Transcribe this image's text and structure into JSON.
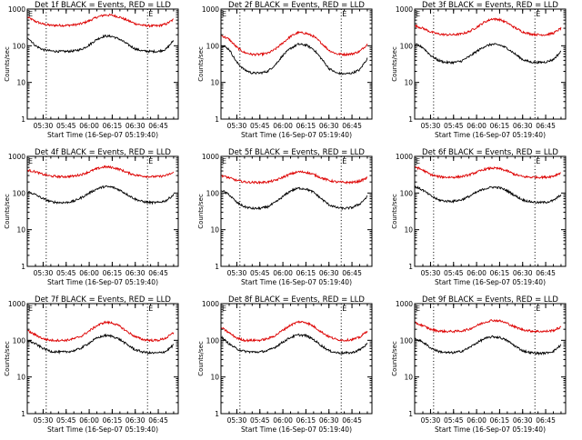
{
  "figure": {
    "xlabel": "Start Time (16-Sep-07 05:19:40)",
    "ylabel": "Counts/sec",
    "x_tick_labels": [
      "05:30",
      "05:45",
      "06:00",
      "06:15",
      "06:30",
      "06:45"
    ],
    "y_tick_labels": [
      "1",
      "10",
      "100",
      "1000"
    ],
    "marker_label": "E"
  },
  "chart_data": [
    {
      "type": "line",
      "title": "Det 1f BLACK = Events, RED = LLD",
      "xlabel": "Start Time (16-Sep-07 05:19:40)",
      "ylabel": "Counts/sec",
      "yscale": "log",
      "ylim": [
        1,
        1000
      ],
      "x": [
        "05:20",
        "05:25",
        "05:30",
        "05:35",
        "05:40",
        "05:45",
        "05:50",
        "05:55",
        "06:00",
        "06:05",
        "06:10",
        "06:15",
        "06:20",
        "06:25",
        "06:30",
        "06:35",
        "06:40",
        "06:45",
        "06:50",
        "06:55"
      ],
      "dotted_lines": [
        "05:32",
        "06:38"
      ],
      "series": [
        {
          "name": "LLD",
          "color": "#dd0000",
          "values": [
            600,
            460,
            390,
            360,
            360,
            360,
            370,
            400,
            480,
            600,
            690,
            680,
            600,
            490,
            400,
            360,
            350,
            350,
            390,
            520
          ]
        },
        {
          "name": "Events",
          "color": "#000000",
          "values": [
            170,
            100,
            78,
            72,
            70,
            70,
            72,
            80,
            105,
            150,
            185,
            180,
            150,
            110,
            82,
            72,
            70,
            70,
            80,
            140
          ]
        }
      ]
    },
    {
      "type": "line",
      "title": "Det 2f BLACK = Events, RED = LLD",
      "xlabel": "Start Time (16-Sep-07 05:19:40)",
      "ylabel": "Counts/sec",
      "yscale": "log",
      "ylim": [
        1,
        1000
      ],
      "x": [
        "05:20",
        "05:25",
        "05:30",
        "05:35",
        "05:40",
        "05:45",
        "05:50",
        "05:55",
        "06:00",
        "06:05",
        "06:10",
        "06:15",
        "06:20",
        "06:25",
        "06:30",
        "06:35",
        "06:40",
        "06:45",
        "06:50",
        "06:55"
      ],
      "dotted_lines": [
        "05:32",
        "06:38"
      ],
      "series": [
        {
          "name": "LLD",
          "color": "#dd0000",
          "values": [
            190,
            150,
            90,
            65,
            58,
            58,
            62,
            80,
            120,
            180,
            230,
            220,
            180,
            120,
            75,
            60,
            58,
            60,
            70,
            110
          ]
        },
        {
          "name": "Events",
          "color": "#000000",
          "values": [
            105,
            80,
            35,
            22,
            18,
            18,
            20,
            30,
            55,
            85,
            110,
            105,
            80,
            45,
            24,
            18,
            17,
            18,
            22,
            45
          ]
        }
      ]
    },
    {
      "type": "line",
      "title": "Det 3f BLACK = Events, RED = LLD",
      "xlabel": "Start Time (16-Sep-07 05:19:40)",
      "ylabel": "Counts/sec",
      "yscale": "log",
      "ylim": [
        1,
        1000
      ],
      "x": [
        "05:20",
        "05:25",
        "05:30",
        "05:35",
        "05:40",
        "05:45",
        "05:50",
        "05:55",
        "06:00",
        "06:05",
        "06:10",
        "06:15",
        "06:20",
        "06:25",
        "06:30",
        "06:35",
        "06:40",
        "06:45",
        "06:50",
        "06:55"
      ],
      "dotted_lines": [
        "05:32",
        "06:38"
      ],
      "series": [
        {
          "name": "LLD",
          "color": "#dd0000",
          "values": [
            350,
            300,
            240,
            210,
            200,
            200,
            210,
            240,
            320,
            440,
            540,
            520,
            420,
            310,
            240,
            210,
            200,
            200,
            220,
            300
          ]
        },
        {
          "name": "Events",
          "color": "#000000",
          "values": [
            110,
            90,
            55,
            40,
            35,
            35,
            38,
            50,
            70,
            95,
            110,
            105,
            85,
            60,
            42,
            36,
            35,
            36,
            42,
            70
          ]
        }
      ]
    },
    {
      "type": "line",
      "title": "Det 4f BLACK = Events, RED = LLD",
      "xlabel": "Start Time (16-Sep-07 05:19:40)",
      "ylabel": "Counts/sec",
      "yscale": "log",
      "ylim": [
        1,
        1000
      ],
      "x": [
        "05:20",
        "05:25",
        "05:30",
        "05:35",
        "05:40",
        "05:45",
        "05:50",
        "05:55",
        "06:00",
        "06:05",
        "06:10",
        "06:15",
        "06:20",
        "06:25",
        "06:30",
        "06:35",
        "06:40",
        "06:45",
        "06:50",
        "06:55"
      ],
      "dotted_lines": [
        "05:32",
        "06:38"
      ],
      "series": [
        {
          "name": "LLD",
          "color": "#dd0000",
          "values": [
            420,
            380,
            320,
            290,
            280,
            280,
            290,
            320,
            380,
            460,
            520,
            500,
            440,
            360,
            310,
            290,
            280,
            280,
            300,
            360
          ]
        },
        {
          "name": "Events",
          "color": "#000000",
          "values": [
            110,
            90,
            70,
            58,
            55,
            55,
            60,
            75,
            100,
            130,
            150,
            145,
            120,
            90,
            68,
            58,
            55,
            55,
            62,
            90
          ]
        }
      ]
    },
    {
      "type": "line",
      "title": "Det 5f BLACK = Events, RED = LLD",
      "xlabel": "Start Time (16-Sep-07 05:19:40)",
      "ylabel": "Counts/sec",
      "yscale": "log",
      "ylim": [
        1,
        1000
      ],
      "x": [
        "05:20",
        "05:25",
        "05:30",
        "05:35",
        "05:40",
        "05:45",
        "05:50",
        "05:55",
        "06:00",
        "06:05",
        "06:10",
        "06:15",
        "06:20",
        "06:25",
        "06:30",
        "06:35",
        "06:40",
        "06:45",
        "06:50",
        "06:55"
      ],
      "dotted_lines": [
        "05:32",
        "06:38"
      ],
      "series": [
        {
          "name": "LLD",
          "color": "#dd0000",
          "values": [
            300,
            260,
            220,
            200,
            195,
            195,
            200,
            220,
            270,
            330,
            380,
            370,
            320,
            260,
            220,
            200,
            195,
            195,
            210,
            260
          ]
        },
        {
          "name": "Events",
          "color": "#000000",
          "values": [
            120,
            90,
            55,
            42,
            38,
            38,
            42,
            55,
            80,
            115,
            135,
            130,
            105,
            70,
            48,
            40,
            38,
            40,
            50,
            80
          ]
        }
      ]
    },
    {
      "type": "line",
      "title": "Det 6f BLACK = Events, RED = LLD",
      "xlabel": "Start Time (16-Sep-07 05:19:40)",
      "ylabel": "Counts/sec",
      "yscale": "log",
      "ylim": [
        1,
        1000
      ],
      "x": [
        "05:20",
        "05:25",
        "05:30",
        "05:35",
        "05:40",
        "05:45",
        "05:50",
        "05:55",
        "06:00",
        "06:05",
        "06:10",
        "06:15",
        "06:20",
        "06:25",
        "06:30",
        "06:35",
        "06:40",
        "06:45",
        "06:50",
        "06:55"
      ],
      "dotted_lines": [
        "05:32",
        "06:38"
      ],
      "series": [
        {
          "name": "LLD",
          "color": "#dd0000",
          "values": [
            520,
            420,
            320,
            280,
            270,
            270,
            280,
            310,
            370,
            440,
            480,
            460,
            400,
            320,
            280,
            270,
            270,
            270,
            290,
            360
          ]
        },
        {
          "name": "Events",
          "color": "#000000",
          "values": [
            150,
            120,
            85,
            65,
            60,
            60,
            65,
            80,
            105,
            130,
            145,
            140,
            115,
            85,
            65,
            58,
            55,
            56,
            62,
            90
          ]
        }
      ]
    },
    {
      "type": "line",
      "title": "Det 7f BLACK = Events, RED = LLD",
      "xlabel": "Start Time (16-Sep-07 05:19:40)",
      "ylabel": "Counts/sec",
      "yscale": "log",
      "ylim": [
        1,
        1000
      ],
      "x": [
        "05:20",
        "05:25",
        "05:30",
        "05:35",
        "05:40",
        "05:45",
        "05:50",
        "05:55",
        "06:00",
        "06:05",
        "06:10",
        "06:15",
        "06:20",
        "06:25",
        "06:30",
        "06:35",
        "06:40",
        "06:45",
        "06:50",
        "06:55"
      ],
      "dotted_lines": [
        "05:32",
        "06:38"
      ],
      "series": [
        {
          "name": "LLD",
          "color": "#dd0000",
          "values": [
            180,
            140,
            110,
            100,
            100,
            100,
            110,
            130,
            180,
            250,
            310,
            300,
            240,
            170,
            125,
            105,
            100,
            100,
            115,
            160
          ]
        },
        {
          "name": "Events",
          "color": "#000000",
          "values": [
            100,
            80,
            60,
            50,
            48,
            48,
            52,
            62,
            85,
            115,
            135,
            130,
            105,
            75,
            55,
            48,
            45,
            45,
            50,
            75
          ]
        }
      ]
    },
    {
      "type": "line",
      "title": "Det 8f BLACK = Events, RED = LLD",
      "xlabel": "Start Time (16-Sep-07 05:19:40)",
      "ylabel": "Counts/sec",
      "yscale": "log",
      "ylim": [
        1,
        1000
      ],
      "x": [
        "05:20",
        "05:25",
        "05:30",
        "05:35",
        "05:40",
        "05:45",
        "05:50",
        "05:55",
        "06:00",
        "06:05",
        "06:10",
        "06:15",
        "06:20",
        "06:25",
        "06:30",
        "06:35",
        "06:40",
        "06:45",
        "06:50",
        "06:55"
      ],
      "dotted_lines": [
        "05:32",
        "06:38"
      ],
      "series": [
        {
          "name": "LLD",
          "color": "#dd0000",
          "values": [
            220,
            160,
            115,
            100,
            100,
            100,
            110,
            135,
            190,
            260,
            320,
            310,
            240,
            170,
            125,
            105,
            100,
            105,
            120,
            180
          ]
        },
        {
          "name": "Events",
          "color": "#000000",
          "values": [
            120,
            80,
            58,
            50,
            48,
            48,
            52,
            65,
            90,
            120,
            140,
            135,
            105,
            72,
            52,
            46,
            45,
            46,
            55,
            80
          ]
        }
      ]
    },
    {
      "type": "line",
      "title": "Det 9f BLACK = Events, RED = LLD",
      "xlabel": "Start Time (16-Sep-07 05:19:40)",
      "ylabel": "Counts/sec",
      "yscale": "log",
      "ylim": [
        1,
        1000
      ],
      "x": [
        "05:20",
        "05:25",
        "05:30",
        "05:35",
        "05:40",
        "05:45",
        "05:50",
        "05:55",
        "06:00",
        "06:05",
        "06:10",
        "06:15",
        "06:20",
        "06:25",
        "06:30",
        "06:35",
        "06:40",
        "06:45",
        "06:50",
        "06:55"
      ],
      "dotted_lines": [
        "05:32",
        "06:38"
      ],
      "series": [
        {
          "name": "LLD",
          "color": "#dd0000",
          "values": [
            300,
            250,
            200,
            180,
            175,
            175,
            180,
            200,
            250,
            310,
            350,
            340,
            290,
            230,
            195,
            180,
            175,
            175,
            185,
            230
          ]
        },
        {
          "name": "Events",
          "color": "#000000",
          "values": [
            110,
            90,
            62,
            50,
            46,
            46,
            50,
            62,
            85,
            110,
            125,
            120,
            98,
            70,
            52,
            46,
            44,
            45,
            50,
            75
          ]
        }
      ]
    }
  ]
}
